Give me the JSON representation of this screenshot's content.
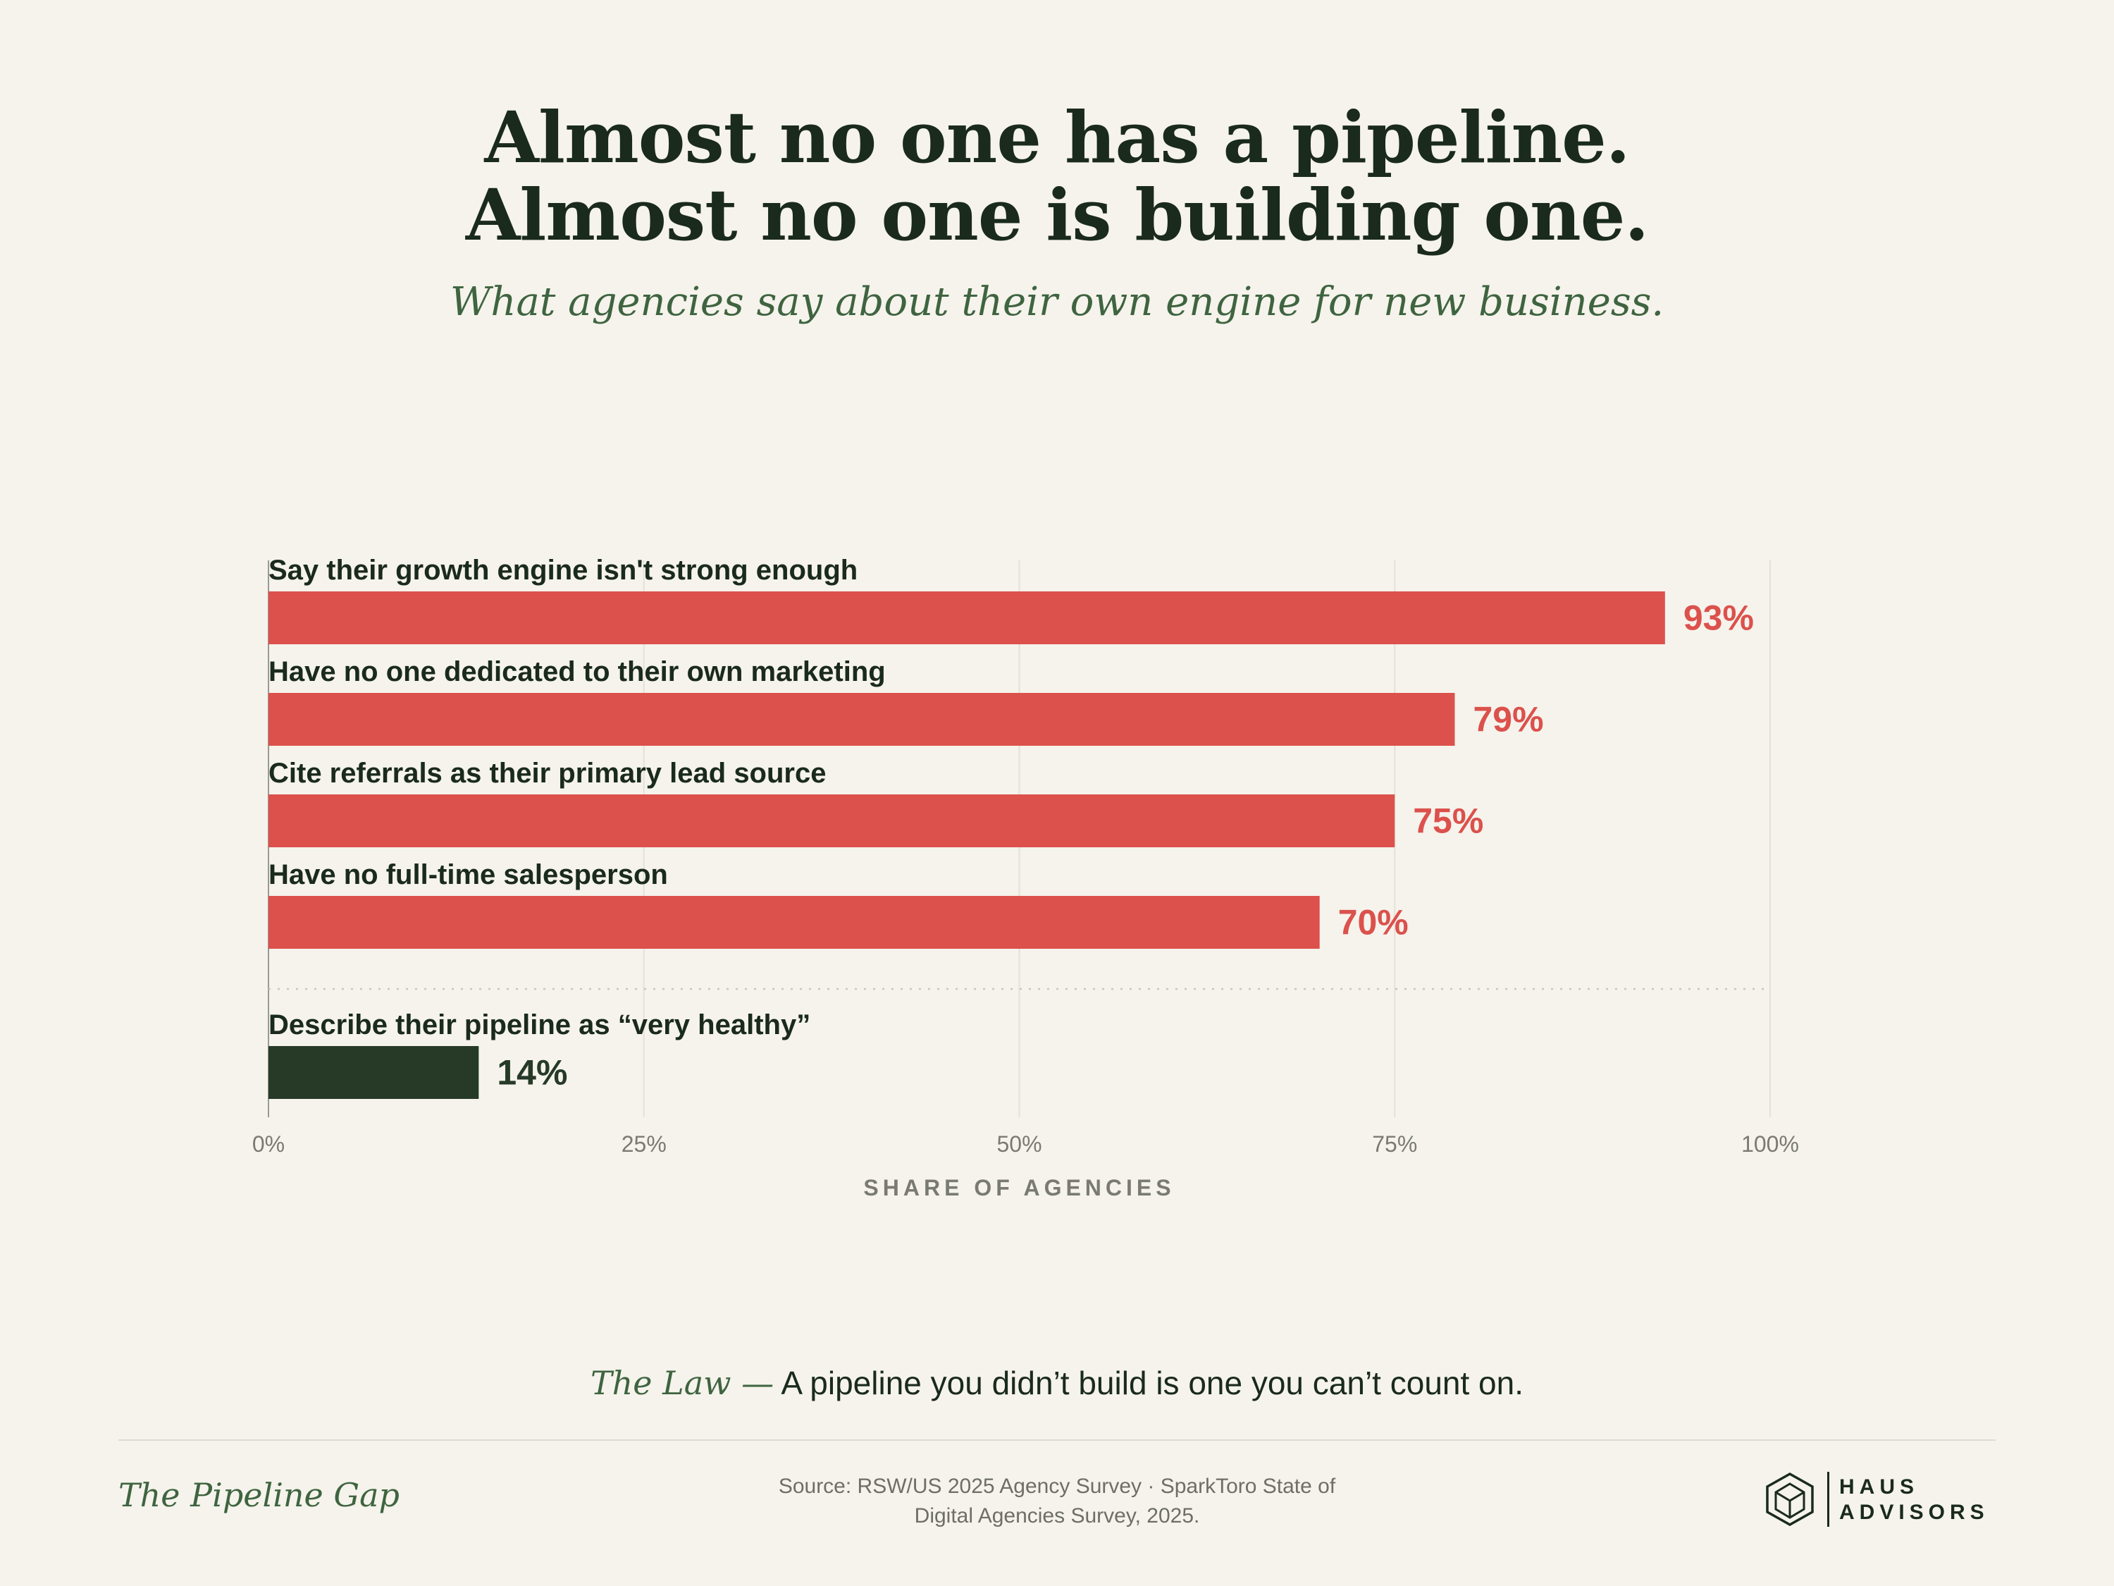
{
  "header": {
    "title_line1": "Almost no one has a pipeline.",
    "title_line2": "Almost no one is building one.",
    "subtitle": "What agencies say about their own engine for new business."
  },
  "chart_data": {
    "type": "bar",
    "orientation": "horizontal",
    "categories": [
      "Say their growth engine isn't strong enough",
      "Have no one dedicated to their own marketing",
      "Cite referrals as their primary lead source",
      "Have no full-time salesperson",
      "Describe their pipeline as “very healthy”"
    ],
    "values": [
      93,
      79,
      75,
      70,
      14
    ],
    "value_labels": [
      "93%",
      "79%",
      "75%",
      "70%",
      "14%"
    ],
    "bar_colors": [
      "#dc514c",
      "#dc514c",
      "#dc514c",
      "#dc514c",
      "#263a27"
    ],
    "xlabel": "SHARE OF AGENCIES",
    "xlim": [
      0,
      100
    ],
    "ticks": [
      0,
      25,
      50,
      75,
      100
    ],
    "tick_labels": [
      "0%",
      "25%",
      "50%",
      "75%",
      "100%"
    ],
    "grid": true,
    "separator_before_last": true
  },
  "law": {
    "label": "The Law —",
    "text": "A pipeline you didn’t build is one you can’t count on."
  },
  "footer": {
    "title": "The Pipeline Gap",
    "source_line1": "Source: RSW/US 2025 Agency Survey · SparkToro State of",
    "source_line2": "Digital Agencies Survey, 2025.",
    "logo_line1": "HAUS",
    "logo_line2": "ADVISORS",
    "logo_icon": "house-hexagon-icon"
  },
  "colors": {
    "background": "#f5f3ec",
    "accent_red": "#dc514c",
    "dark_green": "#263a27",
    "text_green": "#3f6440",
    "ink": "#1a2a1d"
  }
}
